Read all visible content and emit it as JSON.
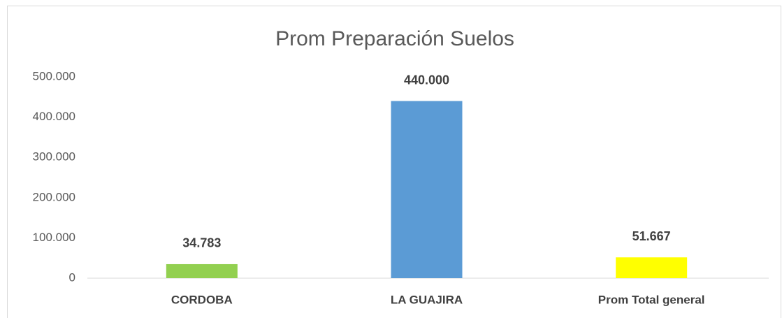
{
  "chart_data": {
    "type": "bar",
    "title": "Prom Preparación Suelos",
    "categories": [
      "CORDOBA",
      "LA GUAJIRA",
      "Prom Total general"
    ],
    "values": [
      34783,
      440000,
      51667
    ],
    "value_labels": [
      "34.783",
      "440.000",
      "51.667"
    ],
    "colors": [
      "#92d050",
      "#5b9bd5",
      "#ffff00"
    ],
    "ylim": [
      0,
      500000
    ],
    "yticks": [
      0,
      {
        "value": 100000,
        "label": "100.000"
      },
      {
        "value": 200000,
        "label": "200.000"
      },
      {
        "value": 300000,
        "label": "300.000"
      },
      {
        "value": 400000,
        "label": "400.000"
      },
      {
        "value": 500000,
        "label": "500.000"
      }
    ],
    "grid": false
  }
}
